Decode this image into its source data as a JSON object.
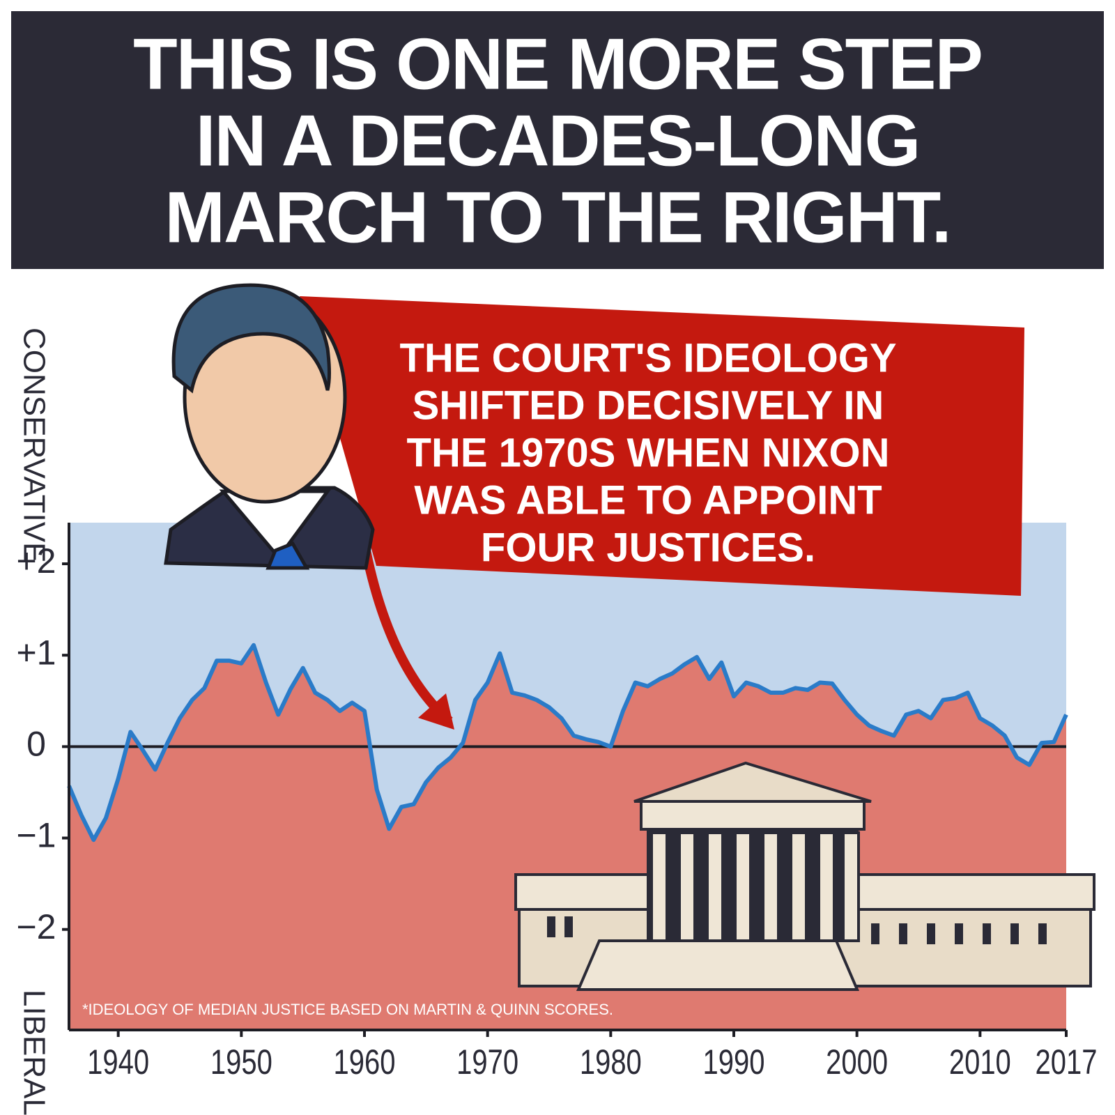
{
  "chart_data": {
    "type": "area-line",
    "title": [
      "THIS IS ONE MORE STEP",
      "IN A DECADES-LONG",
      "MARCH TO THE RIGHT."
    ],
    "annotation": [
      "THE COURT'S IDEOLOGY",
      "SHIFTED DECISIVELY IN",
      "THE 1970S WHEN NIXON",
      "WAS ABLE TO APPOINT",
      "FOUR JUSTICES."
    ],
    "y_label_top": "CONSERVATIVE",
    "y_label_bottom": "LIBERAL",
    "footnote": "*IDEOLOGY OF MEDIAN JUSTICE BASED ON MARTIN & QUINN SCORES.",
    "x": [
      1936,
      1937,
      1938,
      1939,
      1940,
      1941,
      1942,
      1943,
      1944,
      1945,
      1946,
      1947,
      1948,
      1949,
      1950,
      1951,
      1952,
      1953,
      1954,
      1955,
      1956,
      1957,
      1958,
      1959,
      1960,
      1961,
      1962,
      1963,
      1964,
      1965,
      1966,
      1967,
      1968,
      1969,
      1970,
      1971,
      1972,
      1973,
      1974,
      1975,
      1976,
      1977,
      1978,
      1979,
      1980,
      1981,
      1982,
      1983,
      1984,
      1985,
      1986,
      1987,
      1988,
      1989,
      1990,
      1991,
      1992,
      1993,
      1994,
      1995,
      1996,
      1997,
      1998,
      1999,
      2000,
      2001,
      2002,
      2003,
      2004,
      2005,
      2006,
      2007,
      2008,
      2009,
      2010,
      2011,
      2012,
      2013,
      2014,
      2015,
      2016,
      2017
    ],
    "values": [
      -0.43,
      -0.75,
      -1.02,
      -0.78,
      -0.35,
      0.16,
      -0.04,
      -0.25,
      0.04,
      0.31,
      0.51,
      0.64,
      0.94,
      0.94,
      0.91,
      1.11,
      0.7,
      0.35,
      0.63,
      0.86,
      0.59,
      0.51,
      0.39,
      0.48,
      0.39,
      -0.47,
      -0.9,
      -0.66,
      -0.63,
      -0.39,
      -0.23,
      -0.12,
      0.04,
      0.51,
      0.7,
      1.02,
      0.59,
      0.56,
      0.51,
      0.43,
      0.31,
      0.12,
      0.08,
      0.05,
      0,
      0.39,
      0.7,
      0.66,
      0.74,
      0.8,
      0.9,
      0.98,
      0.74,
      0.92,
      0.55,
      0.7,
      0.66,
      0.59,
      0.59,
      0.64,
      0.62,
      0.7,
      0.69,
      0.51,
      0.35,
      0.23,
      0.17,
      0.12,
      0.35,
      0.39,
      0.31,
      0.51,
      0.53,
      0.59,
      0.31,
      0.23,
      0.12,
      -0.12,
      -0.2,
      0.04,
      0.05,
      0.35
    ],
    "line_color": "#2a7bc8",
    "fill_above": "#c2d6ec",
    "fill_below": "#df7a70",
    "xlim": [
      1936,
      2017
    ],
    "ylim": [
      -3.1,
      2.45
    ],
    "xticks": [
      1940,
      1950,
      1960,
      1970,
      1980,
      1990,
      2000,
      2010,
      2017
    ],
    "yticks": [
      {
        "value": 2,
        "label": "+2"
      },
      {
        "value": 1,
        "label": "+1"
      },
      {
        "value": 0,
        "label": "0"
      },
      {
        "value": -1,
        "label": "−1"
      },
      {
        "value": -2,
        "label": "−2"
      }
    ]
  }
}
